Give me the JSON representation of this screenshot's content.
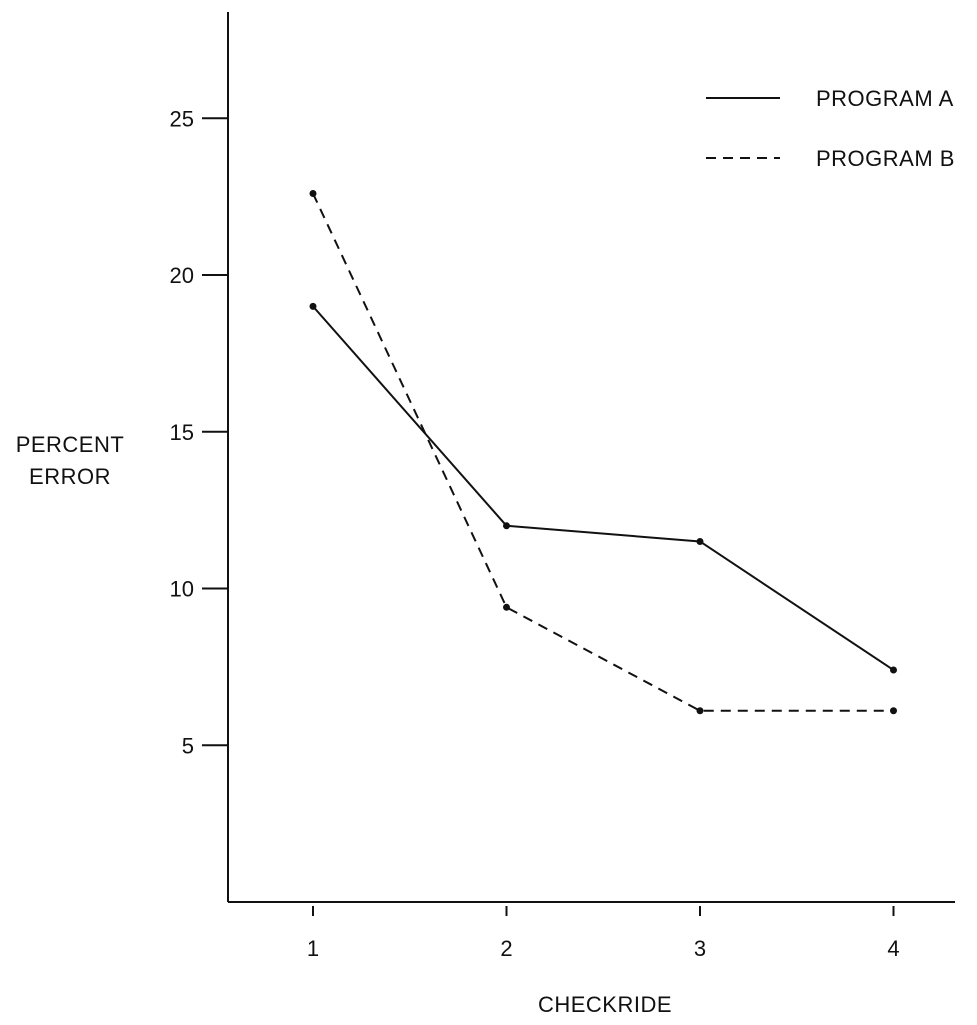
{
  "chart_data": {
    "type": "line",
    "title": "",
    "xlabel": "CHECKRIDE",
    "ylabel": [
      "PERCENT",
      "ERROR"
    ],
    "x": [
      1,
      2,
      3,
      4
    ],
    "x_tick_labels": [
      "1",
      "2",
      "3",
      "4"
    ],
    "ylim": [
      0,
      28
    ],
    "y_ticks": [
      5,
      10,
      15,
      20,
      25
    ],
    "y_tick_labels": [
      "5",
      "10",
      "15",
      "20",
      "25"
    ],
    "grid": false,
    "legend_position": "top-right",
    "series": [
      {
        "name": "PROGRAM A",
        "line_style": "solid",
        "values": [
          19.0,
          12.0,
          11.5,
          7.4
        ]
      },
      {
        "name": "PROGRAM B",
        "line_style": "dashed",
        "values": [
          22.6,
          9.4,
          6.1,
          6.1
        ]
      }
    ],
    "colors": {
      "ink": "#111111",
      "background": "#ffffff"
    }
  }
}
